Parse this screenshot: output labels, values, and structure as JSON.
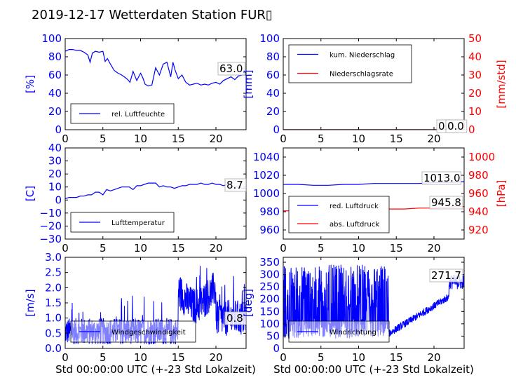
{
  "title": "2019-12-17 Wetterdaten Station FUR▯",
  "colors": {
    "left_axis": "#0000ff",
    "right_axis": "#ff0000",
    "text": "#000000"
  },
  "chart_data": [
    {
      "id": "humidity",
      "type": "line",
      "xlim": [
        0,
        24
      ],
      "ylim": [
        0,
        100
      ],
      "xticks": [
        "0",
        "5",
        "10",
        "15",
        "20"
      ],
      "yticks": [
        "0",
        "20",
        "40",
        "60",
        "80",
        "100"
      ],
      "ylabel": "[%]",
      "annotation": "63.0",
      "legend": [
        {
          "label": "rel. Luftfeuchte",
          "color": "#0000ff"
        }
      ],
      "series": [
        {
          "color": "#0000ff",
          "x": [
            0,
            0.5,
            1,
            1.5,
            2,
            2.5,
            3,
            3.3,
            3.6,
            4,
            4.5,
            5,
            5.3,
            5.6,
            6,
            6.5,
            7,
            7.5,
            8,
            8.3,
            8.6,
            9,
            9.5,
            10,
            10.3,
            10.6,
            11,
            11.5,
            12,
            12.5,
            13,
            13.5,
            14,
            14.3,
            14.6,
            15,
            15.5,
            16,
            16.5,
            17,
            17.5,
            18,
            18.5,
            19,
            19.5,
            20,
            20.5,
            21,
            21.5,
            22,
            22.5,
            23,
            23.5,
            24
          ],
          "y": [
            86,
            88,
            88,
            87,
            87,
            85,
            82,
            74,
            84,
            86,
            85,
            86,
            75,
            78,
            72,
            65,
            62,
            60,
            57,
            55,
            52,
            64,
            54,
            62,
            57,
            50,
            48,
            49,
            68,
            60,
            72,
            74,
            58,
            74,
            65,
            56,
            60,
            52,
            49,
            50,
            51,
            49,
            50,
            49,
            51,
            52,
            50,
            54,
            56,
            58,
            55,
            59,
            60,
            63
          ]
        }
      ]
    },
    {
      "id": "precip",
      "type": "line",
      "xlim": [
        0,
        24
      ],
      "ylim": [
        0,
        100
      ],
      "ylim_right": [
        0,
        50
      ],
      "xticks": [
        "0",
        "5",
        "10",
        "15",
        "20"
      ],
      "yticks": [
        "0",
        "20",
        "40",
        "60",
        "80",
        "100"
      ],
      "yticks_right": [
        "0",
        "10",
        "20",
        "30",
        "40",
        "50"
      ],
      "ylabel": "[mm]",
      "ylabel_right": "[mm/std]",
      "annotation": "0.0",
      "annotation_right": "0.0",
      "legend": [
        {
          "label": "kum. Niederschlag",
          "color": "#0000ff"
        },
        {
          "label": "Niederschlagsrate",
          "color": "#ff0000"
        }
      ],
      "series": [
        {
          "color": "#0000ff",
          "x": [
            0,
            24
          ],
          "y": [
            0,
            0
          ]
        },
        {
          "color": "#ff0000",
          "x": [
            0,
            24
          ],
          "y": [
            0,
            0
          ],
          "axis": "right"
        }
      ]
    },
    {
      "id": "temperature",
      "type": "line",
      "xlim": [
        0,
        24
      ],
      "ylim": [
        -30,
        40
      ],
      "xticks": [
        "0",
        "5",
        "10",
        "15",
        "20"
      ],
      "yticks": [
        "−30",
        "−20",
        "−10",
        "0",
        "10",
        "20",
        "30",
        "40"
      ],
      "ytick_values": [
        -30,
        -20,
        -10,
        0,
        10,
        20,
        30,
        40
      ],
      "ylabel": "[C]",
      "annotation": "8.7",
      "legend": [
        {
          "label": "Lufttemperatur",
          "color": "#0000ff"
        }
      ],
      "series": [
        {
          "color": "#0000ff",
          "x": [
            0,
            0.5,
            1,
            1.5,
            2,
            2.5,
            3,
            3.5,
            4,
            4.5,
            5,
            5.5,
            6,
            6.5,
            7,
            7.5,
            8,
            8.5,
            9,
            9.5,
            10,
            10.5,
            11,
            11.5,
            12,
            12.5,
            13,
            13.5,
            14,
            14.5,
            15,
            15.5,
            16,
            16.5,
            17,
            17.5,
            18,
            18.5,
            19,
            19.5,
            20,
            20.5,
            21,
            21.5,
            22,
            22.5,
            23,
            23.5,
            24
          ],
          "y": [
            1,
            2,
            2,
            2,
            3,
            3,
            4,
            4,
            6,
            6,
            4,
            8,
            7,
            8,
            9,
            10,
            10,
            10,
            8,
            11,
            11,
            12,
            13,
            13,
            13,
            10,
            11,
            10,
            10,
            9,
            10,
            11,
            11,
            12,
            12,
            12,
            13,
            12,
            12,
            13,
            12,
            12,
            11,
            12,
            10,
            10,
            10,
            9,
            9
          ]
        }
      ]
    },
    {
      "id": "pressure",
      "type": "line",
      "xlim": [
        0,
        24
      ],
      "ylim": [
        950,
        1050
      ],
      "ylim_right": [
        910,
        1010
      ],
      "xticks": [
        "0",
        "5",
        "10",
        "15",
        "20"
      ],
      "yticks": [
        "960",
        "980",
        "1000",
        "1020",
        "1040"
      ],
      "ytick_values": [
        960,
        980,
        1000,
        1020,
        1040
      ],
      "yticks_right": [
        "920",
        "940",
        "960",
        "980",
        "1000"
      ],
      "ytick_values_right": [
        920,
        940,
        960,
        980,
        1000
      ],
      "ylabel_right": "[hPa]",
      "annotation": "1013.0",
      "annotation_right": "945.8",
      "legend": [
        {
          "label": "red. Luftdruck",
          "color": "#0000ff"
        },
        {
          "label": "abs. Luftdruck",
          "color": "#ff0000"
        }
      ],
      "series": [
        {
          "color": "#0000ff",
          "x": [
            0,
            2,
            4,
            6,
            8,
            10,
            12,
            14,
            16,
            18,
            20,
            22,
            24
          ],
          "y": [
            1010,
            1010,
            1009,
            1009,
            1010,
            1010,
            1011,
            1011,
            1011,
            1011,
            1012,
            1012,
            1013
          ]
        },
        {
          "color": "#ff0000",
          "x": [
            0,
            2,
            4,
            6,
            8,
            10,
            12,
            14,
            16,
            18,
            20,
            22,
            24
          ],
          "y": [
            941,
            941,
            940,
            941,
            942,
            942,
            943,
            943,
            943,
            944,
            944,
            945,
            945.8
          ],
          "axis": "right"
        }
      ]
    },
    {
      "id": "wind_speed",
      "type": "line",
      "xlim": [
        0,
        24
      ],
      "ylim": [
        0,
        3
      ],
      "xticks": [
        "0",
        "5",
        "10",
        "15",
        "20"
      ],
      "yticks": [
        "0.0",
        "0.5",
        "1.0",
        "1.5",
        "2.0",
        "2.5",
        "3.0"
      ],
      "ytick_values": [
        0,
        0.5,
        1,
        1.5,
        2,
        2.5,
        3
      ],
      "ylabel": "[m/s]",
      "xlabel": "Std 00:00:00 UTC (+-23 Std Lokalzeit)",
      "annotation": "0.8",
      "legend": [
        {
          "label": "Windgeschwindigkeit",
          "color": "#0000ff"
        }
      ]
    },
    {
      "id": "wind_direction",
      "type": "line",
      "xlim": [
        0,
        24
      ],
      "ylim": [
        0,
        370
      ],
      "xticks": [
        "0",
        "5",
        "10",
        "15",
        "20"
      ],
      "yticks": [
        "0",
        "50",
        "100",
        "150",
        "200",
        "250",
        "300",
        "350"
      ],
      "ytick_values": [
        0,
        50,
        100,
        150,
        200,
        250,
        300,
        350
      ],
      "ylabel": "[deg]",
      "xlabel": "Std 00:00:00 UTC (+-23 Std Lokalzeit)",
      "annotation": "271.7",
      "legend": [
        {
          "label": "Windrichtung",
          "color": "#0000ff"
        }
      ]
    }
  ]
}
